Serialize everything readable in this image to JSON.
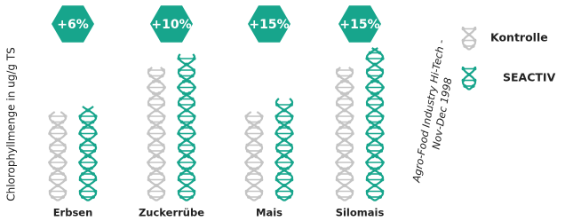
{
  "chart_data": {
    "type": "pictogram-bar",
    "y_label": "Chlorophyllmenge in ug/g TS",
    "categories": [
      "Erbsen",
      "Zuckerrübe",
      "Mais",
      "Silomais"
    ],
    "series": [
      {
        "name": "Kontrolle",
        "color": "#c4c4c4",
        "values": [
          100,
          150,
          100,
          150
        ]
      },
      {
        "name": "SEACTIV",
        "color": "#17a58c",
        "values": [
          106,
          165,
          115,
          172.5
        ]
      }
    ],
    "changes": [
      "+6%",
      "+10%",
      "+15%",
      "+15%"
    ],
    "source": [
      "Agro-Food Industry Hi-Tech -",
      "Nov-Dec 1998"
    ]
  }
}
